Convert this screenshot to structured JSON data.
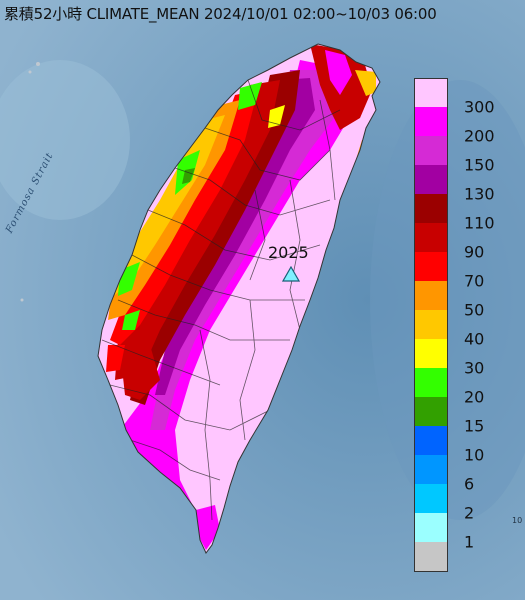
{
  "title": "累積52小時 CLIMATE_MEAN 2024/10/01 02:00~10/03 06:00",
  "map_labels": {
    "strait": "Formosa Strait",
    "station": "2025",
    "corner": "10"
  },
  "legend": {
    "ticks": [
      "300",
      "200",
      "150",
      "130",
      "110",
      "90",
      "70",
      "50",
      "40",
      "30",
      "20",
      "15",
      "10",
      "6",
      "2",
      "1"
    ],
    "colors": [
      "#ffc6ff",
      "#ff00ff",
      "#d52ad5",
      "#a200a2",
      "#9b0000",
      "#c80000",
      "#ff0000",
      "#ff9600",
      "#ffc800",
      "#ffff00",
      "#33ff00",
      "#32a000",
      "#0064ff",
      "#0096ff",
      "#00c8ff",
      "#9bffff",
      "#c6c6c6"
    ]
  },
  "colors": {
    "sea": "#7ea6c4",
    "station_marker": "#7ff0ff"
  }
}
